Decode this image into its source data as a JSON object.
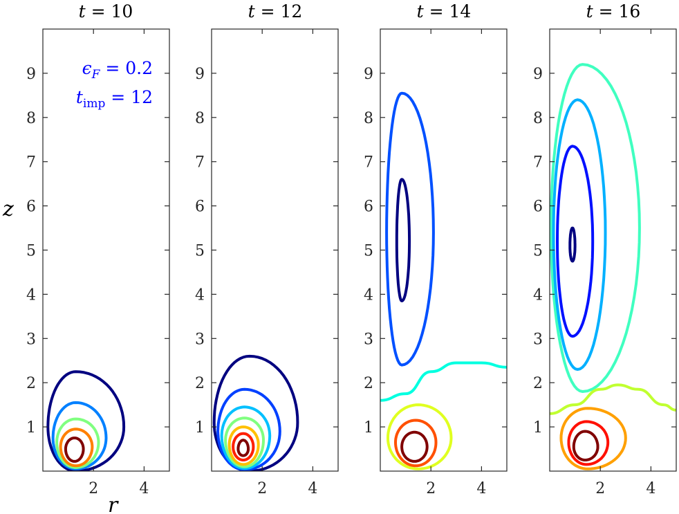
{
  "figure": {
    "ylabel": "z",
    "xlabel": "r",
    "annotation": {
      "line1_sym": "ϵ",
      "line1_sub": "F",
      "line1_rest": " = 0.2",
      "line2_sym": "t",
      "line2_sub": "imp",
      "line2_rest": " = 12"
    },
    "yticks": [
      "1",
      "2",
      "3",
      "4",
      "5",
      "6",
      "7",
      "8",
      "9"
    ],
    "xticks": [
      "2",
      "4"
    ],
    "panels": [
      {
        "title_var": "t",
        "title_rest": " = 10"
      },
      {
        "title_var": "t",
        "title_rest": " = 12"
      },
      {
        "title_var": "t",
        "title_rest": " = 14"
      },
      {
        "title_var": "t",
        "title_rest": " = 16"
      }
    ]
  },
  "chart_data": {
    "type": "contour",
    "title": "",
    "xlabel": "r",
    "ylabel": "z",
    "xlim": [
      0,
      5
    ],
    "ylim": [
      0,
      10
    ],
    "xticks": [
      2,
      4
    ],
    "yticks": [
      1,
      2,
      3,
      4,
      5,
      6,
      7,
      8,
      9
    ],
    "grid": false,
    "annotation": "ϵ_F = 0.2, t_imp = 12",
    "colormap": "jet",
    "panels": [
      {
        "title": "t = 10",
        "contours": [
          {
            "color": "#000080",
            "shape": "closed",
            "center": [
              1.3,
              1.0
            ],
            "r_range": [
              0.2,
              3.2
            ],
            "z_range": [
              0.0,
              2.25
            ]
          },
          {
            "color": "#0080ff",
            "shape": "closed",
            "center": [
              1.3,
              0.75
            ],
            "r_range": [
              0.4,
              2.5
            ],
            "z_range": [
              0.05,
              1.55
            ]
          },
          {
            "color": "#80ff80",
            "shape": "closed",
            "center": [
              1.3,
              0.65
            ],
            "r_range": [
              0.55,
              2.2
            ],
            "z_range": [
              0.08,
              1.18
            ]
          },
          {
            "color": "#ff8000",
            "shape": "closed",
            "center": [
              1.3,
              0.55
            ],
            "r_range": [
              0.7,
              1.95
            ],
            "z_range": [
              0.12,
              0.95
            ]
          },
          {
            "color": "#800000",
            "shape": "closed",
            "center": [
              1.25,
              0.5
            ],
            "r_range": [
              0.9,
              1.6
            ],
            "z_range": [
              0.22,
              0.75
            ]
          }
        ]
      },
      {
        "title": "t = 12",
        "contours": [
          {
            "color": "#000080",
            "shape": "closed",
            "center": [
              1.5,
              1.1
            ],
            "r_range": [
              0.1,
              3.4
            ],
            "z_range": [
              0.0,
              2.6
            ]
          },
          {
            "color": "#0040ff",
            "shape": "closed",
            "center": [
              1.3,
              0.9
            ],
            "r_range": [
              0.25,
              2.7
            ],
            "z_range": [
              0.03,
              1.85
            ]
          },
          {
            "color": "#00c0ff",
            "shape": "closed",
            "center": [
              1.3,
              0.8
            ],
            "r_range": [
              0.4,
              2.3
            ],
            "z_range": [
              0.06,
              1.45
            ]
          },
          {
            "color": "#80ff80",
            "shape": "closed",
            "center": [
              1.3,
              0.7
            ],
            "r_range": [
              0.55,
              2.05
            ],
            "z_range": [
              0.1,
              1.2
            ]
          },
          {
            "color": "#ffc000",
            "shape": "closed",
            "center": [
              1.25,
              0.6
            ],
            "r_range": [
              0.7,
              1.85
            ],
            "z_range": [
              0.15,
              1.0
            ]
          },
          {
            "color": "#ff2000",
            "shape": "closed",
            "center": [
              1.25,
              0.55
            ],
            "r_range": [
              0.85,
              1.65
            ],
            "z_range": [
              0.25,
              0.85
            ]
          },
          {
            "color": "#800000",
            "shape": "closed",
            "center": [
              1.25,
              0.5
            ],
            "r_range": [
              1.05,
              1.45
            ],
            "z_range": [
              0.35,
              0.7
            ]
          }
        ]
      },
      {
        "title": "t = 14",
        "contours": [
          {
            "color": "#0050ff",
            "shape": "closed",
            "center": [
              0.85,
              5.4
            ],
            "r_range": [
              0.25,
              2.1
            ],
            "z_range": [
              2.4,
              8.55
            ]
          },
          {
            "color": "#000080",
            "shape": "closed",
            "center": [
              0.85,
              5.2
            ],
            "r_range": [
              0.65,
              1.15
            ],
            "z_range": [
              3.85,
              6.6
            ]
          },
          {
            "color": "#00ffe0",
            "shape": "open",
            "points": [
              [
                0,
                1.6
              ],
              [
                1,
                1.75
              ],
              [
                2,
                2.25
              ],
              [
                3,
                2.45
              ],
              [
                4,
                2.45
              ],
              [
                5,
                2.35
              ]
            ]
          },
          {
            "color": "#e0ff20",
            "shape": "closed",
            "center": [
              1.5,
              0.75
            ],
            "r_range": [
              0.3,
              2.8
            ],
            "z_range": [
              0.05,
              1.5
            ]
          },
          {
            "color": "#ff5000",
            "shape": "closed",
            "center": [
              1.4,
              0.65
            ],
            "r_range": [
              0.6,
              2.2
            ],
            "z_range": [
              0.12,
              1.15
            ]
          },
          {
            "color": "#800000",
            "shape": "closed",
            "center": [
              1.35,
              0.55
            ],
            "r_range": [
              0.85,
              1.85
            ],
            "z_range": [
              0.22,
              0.88
            ]
          }
        ]
      },
      {
        "title": "t = 16",
        "contours": [
          {
            "color": "#40ffc0",
            "shape": "closed",
            "center": [
              1.3,
              5.5
            ],
            "r_range": [
              0.05,
              3.55
            ],
            "z_range": [
              1.8,
              9.2
            ]
          },
          {
            "color": "#00b0ff",
            "shape": "closed",
            "center": [
              1.1,
              5.4
            ],
            "r_range": [
              0.15,
              2.2
            ],
            "z_range": [
              2.3,
              8.4
            ]
          },
          {
            "color": "#0010ff",
            "shape": "closed",
            "center": [
              0.9,
              5.2
            ],
            "r_range": [
              0.3,
              1.7
            ],
            "z_range": [
              3.05,
              7.35
            ]
          },
          {
            "color": "#000080",
            "shape": "closed",
            "center": [
              0.9,
              5.1
            ],
            "r_range": [
              0.8,
              1.0
            ],
            "z_range": [
              4.75,
              5.5
            ]
          },
          {
            "color": "#c0ff30",
            "shape": "open",
            "points": [
              [
                0,
                1.3
              ],
              [
                1,
                1.5
              ],
              [
                2,
                1.85
              ],
              [
                2.7,
                1.95
              ],
              [
                3.5,
                1.85
              ],
              [
                4.5,
                1.5
              ],
              [
                5,
                1.38
              ]
            ]
          },
          {
            "color": "#ffa000",
            "shape": "closed",
            "center": [
              1.5,
              0.75
            ],
            "r_range": [
              0.45,
              3.0
            ],
            "z_range": [
              0.05,
              1.42
            ]
          },
          {
            "color": "#ff1000",
            "shape": "closed",
            "center": [
              1.45,
              0.65
            ],
            "r_range": [
              0.75,
              2.3
            ],
            "z_range": [
              0.15,
              1.12
            ]
          },
          {
            "color": "#800000",
            "shape": "closed",
            "center": [
              1.4,
              0.55
            ],
            "r_range": [
              0.95,
              1.9
            ],
            "z_range": [
              0.25,
              0.9
            ]
          }
        ]
      }
    ]
  }
}
